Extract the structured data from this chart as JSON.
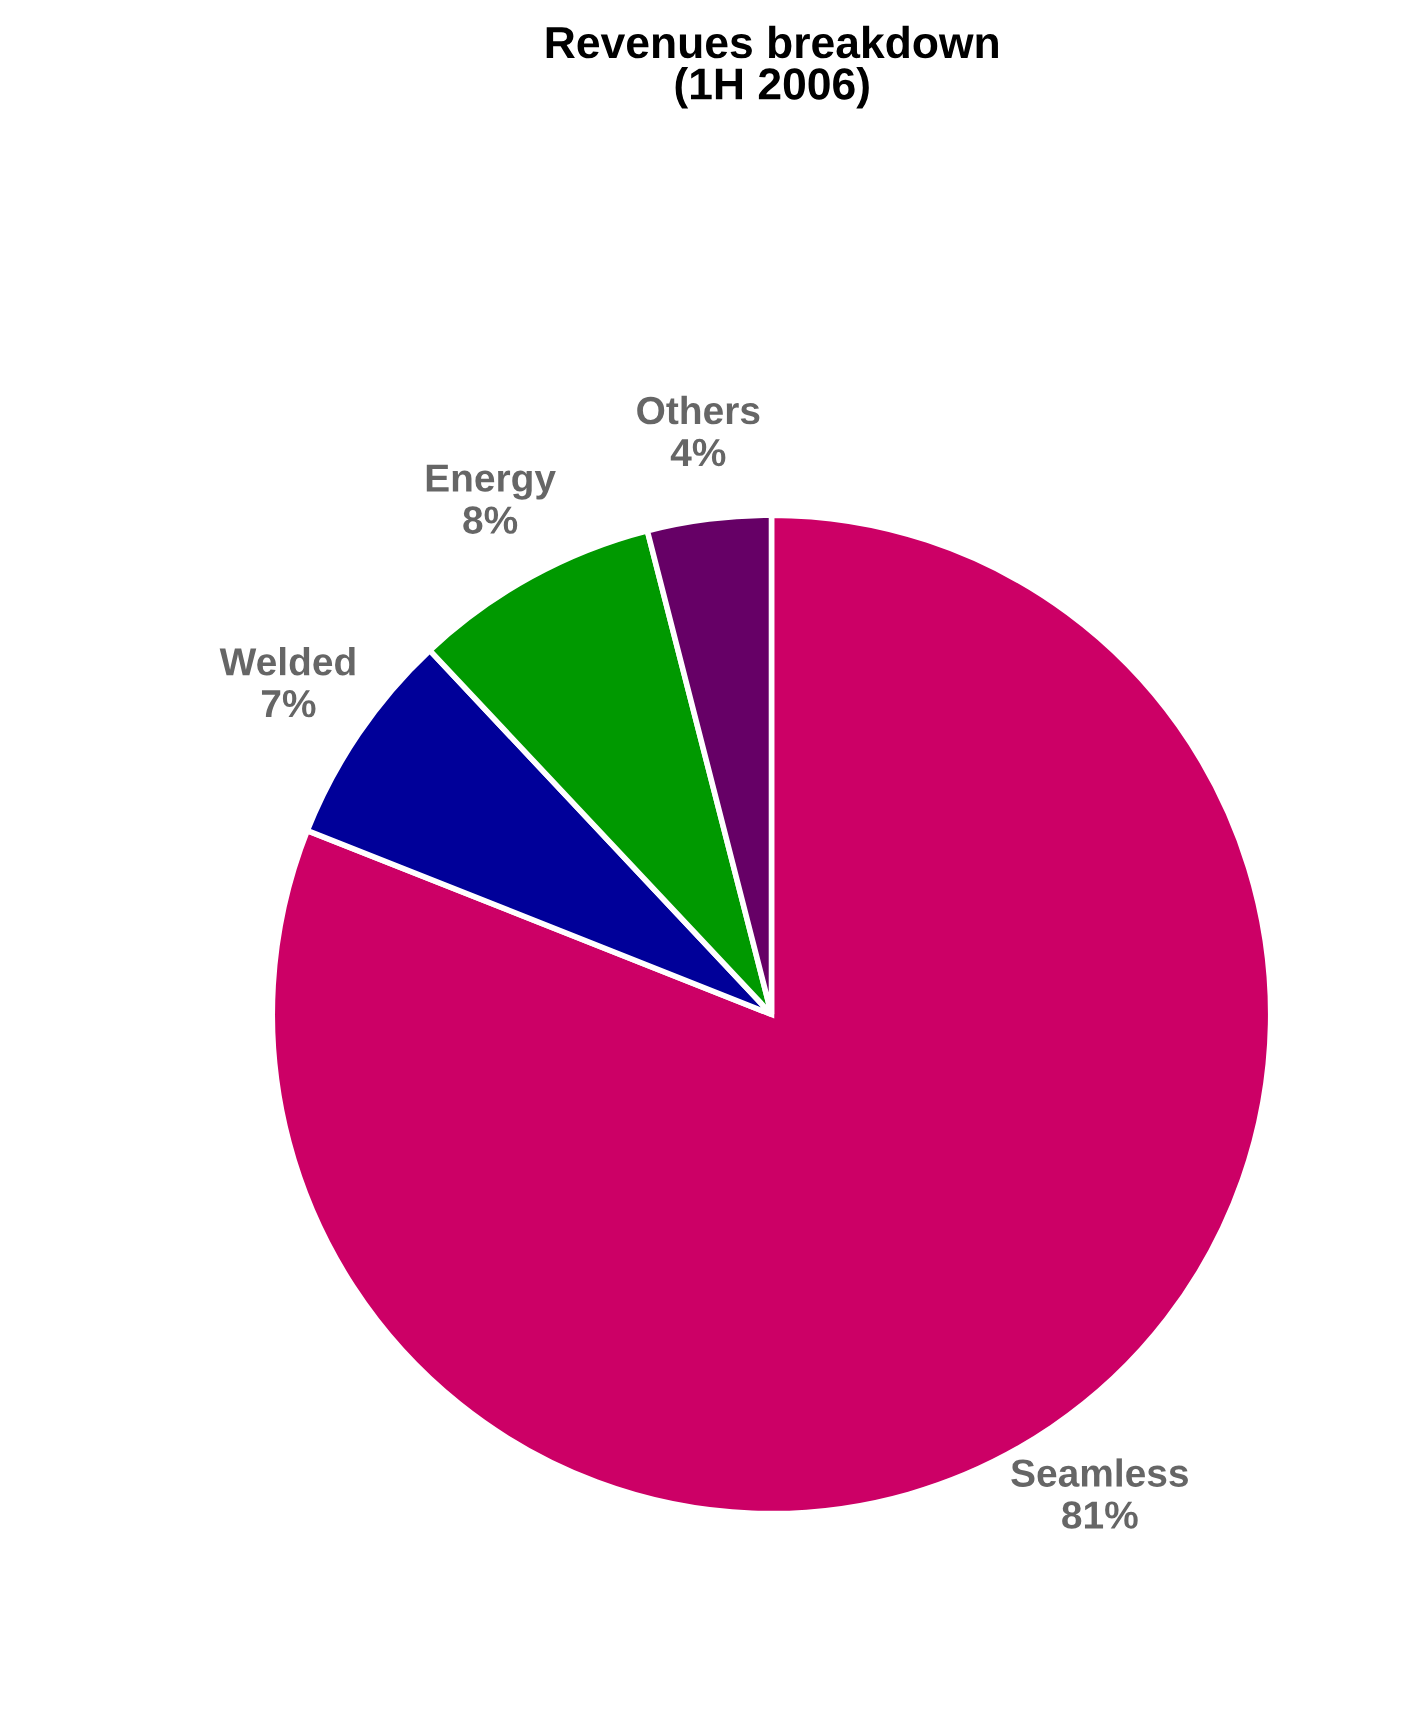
{
  "chart_data": {
    "type": "pie",
    "title": "Revenues breakdown\n(1H 2006)",
    "categories": [
      "Seamless",
      "Welded",
      "Energy",
      "Others"
    ],
    "values": [
      81,
      7,
      8,
      4
    ],
    "value_labels": [
      "81%",
      "7%",
      "8%",
      "4%"
    ],
    "colors": [
      "#cc0066",
      "#000099",
      "#009900",
      "#660066"
    ],
    "legend": false
  }
}
